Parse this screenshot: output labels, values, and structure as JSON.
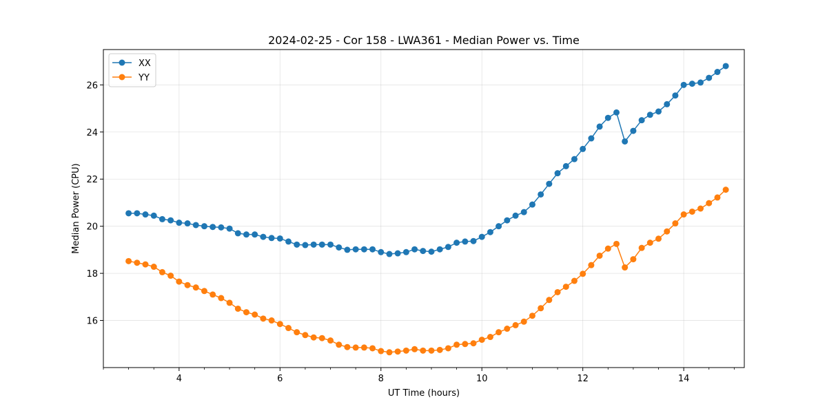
{
  "chart_data": {
    "type": "line",
    "title": "2024-02-25 - Cor 158 - LWA361 - Median Power vs. Time",
    "xlabel": "UT Time (hours)",
    "ylabel": "Median Power (CPU)",
    "xlim": [
      2.5,
      15.2
    ],
    "ylim": [
      14.0,
      27.5
    ],
    "xticks": [
      4,
      6,
      8,
      10,
      12,
      14
    ],
    "yticks": [
      16,
      18,
      20,
      22,
      24,
      26
    ],
    "grid": true,
    "legend_position": "top-left",
    "x": [
      3.0,
      3.167,
      3.333,
      3.5,
      3.667,
      3.833,
      4.0,
      4.167,
      4.333,
      4.5,
      4.667,
      4.833,
      5.0,
      5.167,
      5.333,
      5.5,
      5.667,
      5.833,
      6.0,
      6.167,
      6.333,
      6.5,
      6.667,
      6.833,
      7.0,
      7.167,
      7.333,
      7.5,
      7.667,
      7.833,
      8.0,
      8.167,
      8.333,
      8.5,
      8.667,
      8.833,
      9.0,
      9.167,
      9.333,
      9.5,
      9.667,
      9.833,
      10.0,
      10.167,
      10.333,
      10.5,
      10.667,
      10.833,
      11.0,
      11.167,
      11.333,
      11.5,
      11.667,
      11.833,
      12.0,
      12.167,
      12.333,
      12.5,
      12.667,
      12.833,
      13.0,
      13.167,
      13.333,
      13.5,
      13.667,
      13.833,
      14.0,
      14.167,
      14.333,
      14.5,
      14.667,
      14.833
    ],
    "series": [
      {
        "name": "XX",
        "color": "#1f77b4",
        "values": [
          20.55,
          20.55,
          20.5,
          20.45,
          20.3,
          20.25,
          20.15,
          20.12,
          20.05,
          20.0,
          19.97,
          19.95,
          19.9,
          19.7,
          19.65,
          19.65,
          19.55,
          19.5,
          19.48,
          19.35,
          19.22,
          19.2,
          19.22,
          19.22,
          19.22,
          19.1,
          19.0,
          19.02,
          19.02,
          19.02,
          18.9,
          18.82,
          18.85,
          18.9,
          19.02,
          18.95,
          18.92,
          19.02,
          19.12,
          19.3,
          19.35,
          19.37,
          19.55,
          19.75,
          20.0,
          20.25,
          20.45,
          20.6,
          20.92,
          21.35,
          21.8,
          22.25,
          22.55,
          22.85,
          23.28,
          23.73,
          24.23,
          24.6,
          24.83,
          23.6,
          24.05,
          24.5,
          24.73,
          24.87,
          25.18,
          25.55,
          26.0,
          26.05,
          26.1,
          26.3,
          26.55,
          26.8
        ]
      },
      {
        "name": "YY",
        "color": "#ff7f0e",
        "values": [
          18.52,
          18.45,
          18.38,
          18.28,
          18.05,
          17.9,
          17.65,
          17.5,
          17.4,
          17.25,
          17.1,
          16.95,
          16.75,
          16.5,
          16.35,
          16.25,
          16.08,
          16.0,
          15.85,
          15.68,
          15.5,
          15.38,
          15.28,
          15.25,
          15.15,
          14.97,
          14.87,
          14.85,
          14.85,
          14.82,
          14.7,
          14.65,
          14.68,
          14.72,
          14.78,
          14.72,
          14.72,
          14.75,
          14.82,
          14.97,
          15.0,
          15.03,
          15.18,
          15.3,
          15.5,
          15.65,
          15.8,
          15.95,
          16.2,
          16.52,
          16.87,
          17.2,
          17.43,
          17.68,
          17.98,
          18.35,
          18.75,
          19.05,
          19.25,
          18.25,
          18.6,
          19.08,
          19.3,
          19.47,
          19.78,
          20.12,
          20.5,
          20.62,
          20.75,
          20.98,
          21.22,
          21.55
        ]
      }
    ]
  }
}
